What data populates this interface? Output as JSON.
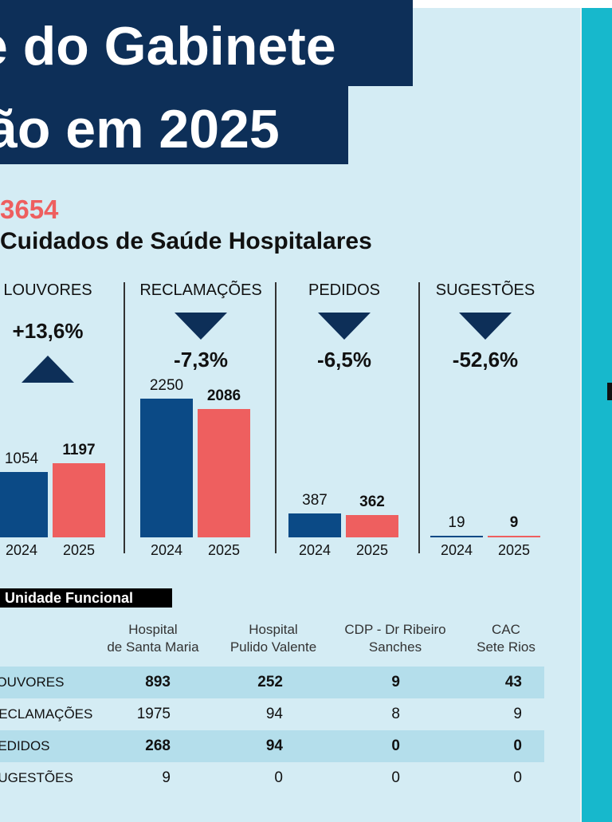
{
  "header": {
    "title_line1": "e do Gabinete",
    "title_line2": "ão em 2025"
  },
  "summary": {
    "total": "3654",
    "subtitle": "Cuidados de Saúde Hospitalares"
  },
  "chart_data": {
    "type": "bar",
    "categories": [
      "2024",
      "2025"
    ],
    "value_max": 2250,
    "panels": [
      {
        "title": "LOUVORES",
        "change": "+13,6%",
        "direction": "up",
        "values": [
          1054,
          1197
        ],
        "labels": [
          "1054",
          "1197"
        ]
      },
      {
        "title": "RECLAMAÇÕES",
        "change": "-7,3%",
        "direction": "down",
        "values": [
          2250,
          2086
        ],
        "labels": [
          "2250",
          "2086"
        ]
      },
      {
        "title": "PEDIDOS",
        "change": "-6,5%",
        "direction": "down",
        "values": [
          387,
          362
        ],
        "labels": [
          "387",
          "362"
        ]
      },
      {
        "title": "SUGESTÕES",
        "change": "-52,6%",
        "direction": "down",
        "values": [
          19,
          9
        ],
        "labels": [
          "19",
          "9"
        ]
      }
    ],
    "colors": {
      "2024": "#0b4a86",
      "2025": "#ee5f5f"
    }
  },
  "table": {
    "label": "Unidade Funcional",
    "columns": [
      {
        "line1": "Hospital",
        "line2": "de Santa Maria"
      },
      {
        "line1": "Hospital",
        "line2": "Pulido Valente"
      },
      {
        "line1": "CDP - Dr Ribeiro",
        "line2": "Sanches"
      },
      {
        "line1": "CAC",
        "line2": "Sete Rios"
      }
    ],
    "rows": [
      {
        "label": "LOUVORES",
        "values": [
          "893",
          "252",
          "9",
          "43"
        ]
      },
      {
        "label": "RECLAMAÇÕES",
        "values": [
          "1975",
          "94",
          "8",
          "9"
        ]
      },
      {
        "label": "PEDIDOS",
        "values": [
          "268",
          "94",
          "0",
          "0"
        ]
      },
      {
        "label": "SUGESTÕES",
        "values": [
          "9",
          "0",
          "0",
          "0"
        ]
      }
    ]
  }
}
